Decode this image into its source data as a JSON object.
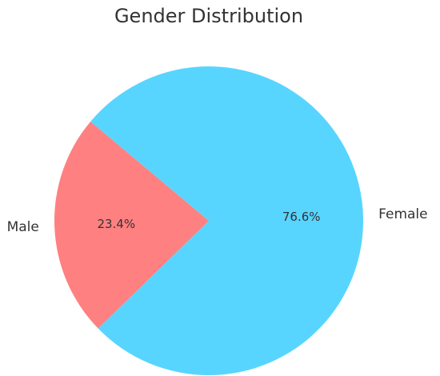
{
  "chart_data": {
    "type": "pie",
    "title": "Gender Distribution",
    "slices": [
      {
        "label": "Male",
        "value": 23.4,
        "pct_label": "23.4%",
        "color": "#ff8080"
      },
      {
        "label": "Female",
        "value": 76.6,
        "pct_label": "76.6%",
        "color": "#58d5ff"
      }
    ]
  }
}
